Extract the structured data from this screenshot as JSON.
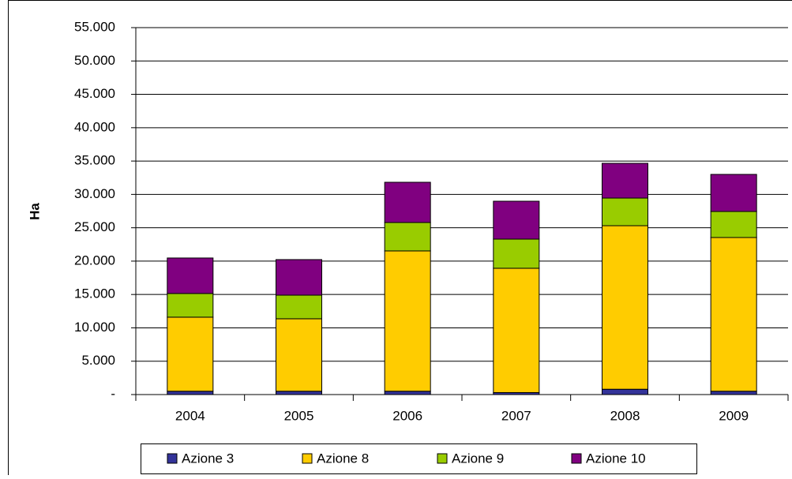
{
  "chart_data": {
    "type": "bar",
    "stacked": true,
    "y_label": "Ha",
    "categories": [
      "2004",
      "2005",
      "2006",
      "2007",
      "2008",
      "2009"
    ],
    "series": [
      {
        "name": "Azione 3",
        "color": "#333399",
        "values": [
          500,
          500,
          500,
          300,
          800,
          500
        ]
      },
      {
        "name": "Azione 8",
        "color": "#ffcc00",
        "values": [
          11100,
          10860,
          21030,
          18630,
          24510,
          23040
        ]
      },
      {
        "name": "Azione 9",
        "color": "#99cc00",
        "values": [
          3550,
          3540,
          4260,
          4370,
          4140,
          3900
        ]
      },
      {
        "name": "Azione 10",
        "color": "#800080",
        "values": [
          5320,
          5330,
          6030,
          5680,
          5210,
          5560
        ]
      }
    ],
    "ylim": [
      0,
      55000
    ],
    "yticks": [
      {
        "value": 0,
        "label": "-"
      },
      {
        "value": 5000,
        "label": "5.000"
      },
      {
        "value": 10000,
        "label": "10.000"
      },
      {
        "value": 15000,
        "label": "15.000"
      },
      {
        "value": 20000,
        "label": "20.000"
      },
      {
        "value": 25000,
        "label": "25.000"
      },
      {
        "value": 30000,
        "label": "30.000"
      },
      {
        "value": 35000,
        "label": "35.000"
      },
      {
        "value": 40000,
        "label": "40.000"
      },
      {
        "value": 45000,
        "label": "45.000"
      },
      {
        "value": 50000,
        "label": "50.000"
      },
      {
        "value": 55000,
        "label": "55.000"
      }
    ],
    "grid": true
  }
}
